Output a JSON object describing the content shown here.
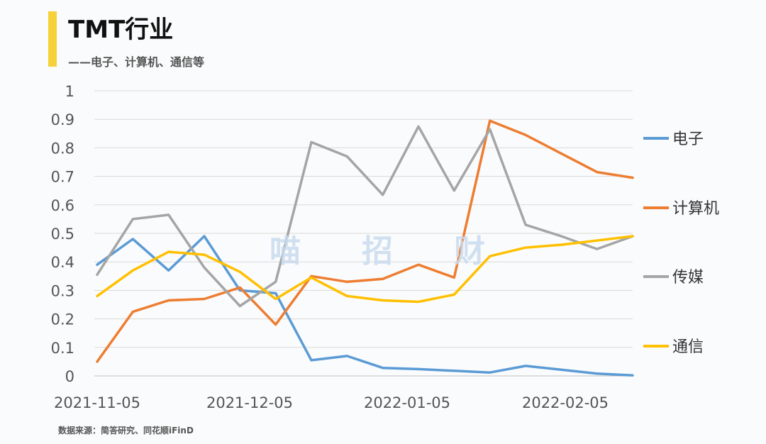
{
  "header": {
    "title": "TMT行业",
    "subtitle": "——电子、计算机、通信等"
  },
  "watermark": [
    "喵",
    "招",
    "财"
  ],
  "source": "数据来源：简答研究、同花顺iFinD",
  "colors": {
    "accent": "#f7d13a",
    "电子": "#5b9bd5",
    "计算机": "#ed7d31",
    "传媒": "#a5a5a5",
    "通信": "#ffc000"
  },
  "chart_data": {
    "type": "line",
    "title": "TMT行业",
    "xlabel": "",
    "ylabel": "",
    "ylim": [
      0,
      1
    ],
    "yticks": [
      "0",
      "0.1",
      "0.2",
      "0.3",
      "0.4",
      "0.5",
      "0.6",
      "0.7",
      "0.8",
      "0.9",
      "1"
    ],
    "xtick_labels": [
      "2021-11-05",
      "2021-12-05",
      "2022-01-05",
      "2022-02-05"
    ],
    "grid": true,
    "legend_position": "right",
    "series": [
      {
        "name": "电子",
        "values": [
          0.39,
          0.48,
          0.37,
          0.49,
          0.3,
          0.29,
          0.055,
          0.07,
          0.028,
          0.024,
          0.018,
          0.012,
          0.035,
          0.022,
          0.008,
          0.002
        ]
      },
      {
        "name": "计算机",
        "values": [
          0.05,
          0.225,
          0.265,
          0.27,
          0.31,
          0.18,
          0.35,
          0.33,
          0.34,
          0.39,
          0.345,
          0.895,
          0.845,
          0.78,
          0.715,
          0.695
        ]
      },
      {
        "name": "传媒",
        "values": [
          0.355,
          0.55,
          0.565,
          0.38,
          0.245,
          0.33,
          0.82,
          0.77,
          0.635,
          0.875,
          0.65,
          0.865,
          0.53,
          0.49,
          0.445,
          0.49
        ]
      },
      {
        "name": "通信",
        "values": [
          0.28,
          0.37,
          0.435,
          0.425,
          0.365,
          0.27,
          0.345,
          0.28,
          0.265,
          0.26,
          0.285,
          0.42,
          0.45,
          0.46,
          0.475,
          0.49
        ]
      }
    ]
  }
}
